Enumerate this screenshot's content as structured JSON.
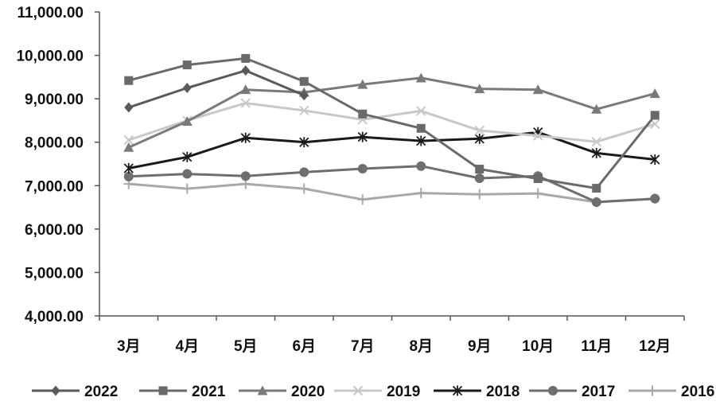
{
  "chart_data": {
    "type": "line",
    "title": "",
    "xlabel": "",
    "ylabel": "",
    "categories": [
      "3月",
      "4月",
      "5月",
      "6月",
      "7月",
      "8月",
      "9月",
      "10月",
      "11月",
      "12月"
    ],
    "ylim": [
      4000,
      11000
    ],
    "yticks": [
      "11,000.00",
      "10,000.00",
      "9,000.00",
      "8,000.00",
      "7,000.00",
      "6,000.00",
      "5,000.00",
      "4,000.00"
    ],
    "grid": false,
    "legend_position": "bottom",
    "series": [
      {
        "name": "2022",
        "marker": "diamond",
        "color": "#5a5a5a",
        "values": [
          8800,
          9250,
          9650,
          9080,
          null,
          null,
          null,
          null,
          null,
          null
        ]
      },
      {
        "name": "2021",
        "marker": "square",
        "color": "#6a6a6a",
        "values": [
          9420,
          9780,
          9930,
          9400,
          8650,
          8320,
          7380,
          7160,
          6940,
          8620
        ]
      },
      {
        "name": "2020",
        "marker": "triangle",
        "color": "#7a7a7a",
        "values": [
          7880,
          8480,
          9210,
          9150,
          9330,
          9480,
          9230,
          9210,
          8760,
          9120
        ]
      },
      {
        "name": "2019",
        "marker": "x",
        "color": "#c8c8c8",
        "values": [
          8050,
          8500,
          8900,
          8730,
          8520,
          8720,
          8270,
          8150,
          8010,
          8420
        ]
      },
      {
        "name": "2018",
        "marker": "star",
        "color": "#1a1a1a",
        "values": [
          7400,
          7660,
          8100,
          8000,
          8120,
          8030,
          8080,
          8230,
          7750,
          7600
        ]
      },
      {
        "name": "2017",
        "marker": "circle",
        "color": "#6e6e6e",
        "values": [
          7210,
          7270,
          7220,
          7310,
          7390,
          7450,
          7170,
          7220,
          6620,
          6700
        ]
      },
      {
        "name": "2016",
        "marker": "plus",
        "color": "#a8a8a8",
        "values": [
          7040,
          6930,
          7040,
          6930,
          6680,
          6830,
          6800,
          6820,
          6620,
          6700
        ]
      }
    ]
  }
}
